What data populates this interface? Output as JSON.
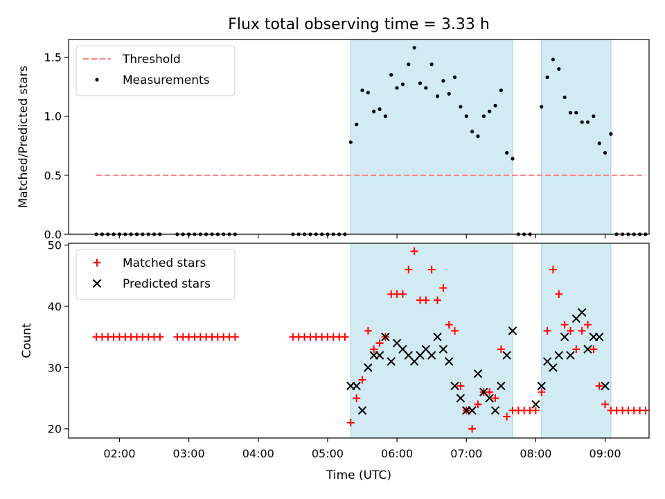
{
  "chart_data": {
    "title": "Flux total observing time = 3.33 h",
    "xlabel": "Time (UTC)",
    "x_ticks": [
      "02:00",
      "03:00",
      "04:00",
      "05:00",
      "06:00",
      "07:00",
      "08:00",
      "09:00"
    ],
    "x_range": [
      "01:16",
      "09:38"
    ],
    "highlight_intervals": [
      [
        "05:20",
        "07:40"
      ],
      [
        "08:05",
        "09:05"
      ]
    ],
    "highlight_color": "#add8e6",
    "panels": [
      {
        "type": "scatter",
        "ylabel": "Matched/Predicted stars",
        "ylim": [
          0,
          1.65
        ],
        "y_ticks": [
          0.0,
          0.5,
          1.0,
          1.5
        ],
        "legend": "top-left",
        "threshold": {
          "name": "Threshold",
          "value": 0.5,
          "x_start": "01:40",
          "x_end": "09:35",
          "color": "#ff7f7f",
          "style": "dashed"
        },
        "series": [
          {
            "name": "Measurements",
            "color": "#000000",
            "marker": "dot",
            "points": [
              [
                "01:40",
                0
              ],
              [
                "01:45",
                0
              ],
              [
                "01:50",
                0
              ],
              [
                "01:55",
                0
              ],
              [
                "02:00",
                0
              ],
              [
                "02:05",
                0
              ],
              [
                "02:10",
                0
              ],
              [
                "02:15",
                0
              ],
              [
                "02:20",
                0
              ],
              [
                "02:25",
                0
              ],
              [
                "02:30",
                0
              ],
              [
                "02:35",
                0
              ],
              [
                "02:50",
                0
              ],
              [
                "02:55",
                0
              ],
              [
                "03:00",
                0
              ],
              [
                "03:05",
                0
              ],
              [
                "03:10",
                0
              ],
              [
                "03:15",
                0
              ],
              [
                "03:20",
                0
              ],
              [
                "03:25",
                0
              ],
              [
                "03:30",
                0
              ],
              [
                "03:35",
                0
              ],
              [
                "03:40",
                0
              ],
              [
                "04:30",
                0
              ],
              [
                "04:35",
                0
              ],
              [
                "04:40",
                0
              ],
              [
                "04:45",
                0
              ],
              [
                "04:50",
                0
              ],
              [
                "04:55",
                0
              ],
              [
                "05:00",
                0
              ],
              [
                "05:05",
                0
              ],
              [
                "05:10",
                0
              ],
              [
                "05:15",
                0
              ],
              [
                "05:20",
                0.78
              ],
              [
                "05:25",
                0.93
              ],
              [
                "05:30",
                1.22
              ],
              [
                "05:35",
                1.2
              ],
              [
                "05:40",
                1.04
              ],
              [
                "05:45",
                1.06
              ],
              [
                "05:50",
                1.0
              ],
              [
                "05:55",
                1.35
              ],
              [
                "06:00",
                1.24
              ],
              [
                "06:05",
                1.27
              ],
              [
                "06:10",
                1.44
              ],
              [
                "06:15",
                1.58
              ],
              [
                "06:20",
                1.28
              ],
              [
                "06:25",
                1.24
              ],
              [
                "06:30",
                1.44
              ],
              [
                "06:35",
                1.17
              ],
              [
                "06:40",
                1.3
              ],
              [
                "06:45",
                1.19
              ],
              [
                "06:50",
                1.33
              ],
              [
                "06:55",
                1.08
              ],
              [
                "07:00",
                1.0
              ],
              [
                "07:05",
                0.87
              ],
              [
                "07:10",
                0.83
              ],
              [
                "07:15",
                1.0
              ],
              [
                "07:20",
                1.04
              ],
              [
                "07:25",
                1.09
              ],
              [
                "07:30",
                1.22
              ],
              [
                "07:35",
                0.69
              ],
              [
                "07:40",
                0.64
              ],
              [
                "07:45",
                0
              ],
              [
                "07:50",
                0
              ],
              [
                "07:55",
                0
              ],
              [
                "08:05",
                1.08
              ],
              [
                "08:10",
                1.33
              ],
              [
                "08:15",
                1.48
              ],
              [
                "08:20",
                1.4
              ],
              [
                "08:25",
                1.16
              ],
              [
                "08:30",
                1.03
              ],
              [
                "08:35",
                1.03
              ],
              [
                "08:40",
                0.95
              ],
              [
                "08:45",
                0.95
              ],
              [
                "08:50",
                1.0
              ],
              [
                "08:55",
                0.77
              ],
              [
                "09:00",
                0.69
              ],
              [
                "09:05",
                0.85
              ],
              [
                "09:10",
                0
              ],
              [
                "09:15",
                0
              ],
              [
                "09:20",
                0
              ],
              [
                "09:25",
                0
              ],
              [
                "09:30",
                0
              ],
              [
                "09:35",
                0
              ]
            ]
          }
        ]
      },
      {
        "type": "scatter",
        "ylabel": "Count",
        "ylim": [
          18.5,
          50.3
        ],
        "y_ticks": [
          20,
          30,
          40,
          50
        ],
        "legend": "top-left",
        "series": [
          {
            "name": "Matched stars",
            "color": "#ff0000",
            "marker": "plus",
            "points": [
              [
                "01:40",
                35
              ],
              [
                "01:45",
                35
              ],
              [
                "01:50",
                35
              ],
              [
                "01:55",
                35
              ],
              [
                "02:00",
                35
              ],
              [
                "02:05",
                35
              ],
              [
                "02:10",
                35
              ],
              [
                "02:15",
                35
              ],
              [
                "02:20",
                35
              ],
              [
                "02:25",
                35
              ],
              [
                "02:30",
                35
              ],
              [
                "02:35",
                35
              ],
              [
                "02:50",
                35
              ],
              [
                "02:55",
                35
              ],
              [
                "03:00",
                35
              ],
              [
                "03:05",
                35
              ],
              [
                "03:10",
                35
              ],
              [
                "03:15",
                35
              ],
              [
                "03:20",
                35
              ],
              [
                "03:25",
                35
              ],
              [
                "03:30",
                35
              ],
              [
                "03:35",
                35
              ],
              [
                "03:40",
                35
              ],
              [
                "04:30",
                35
              ],
              [
                "04:35",
                35
              ],
              [
                "04:40",
                35
              ],
              [
                "04:45",
                35
              ],
              [
                "04:50",
                35
              ],
              [
                "04:55",
                35
              ],
              [
                "05:00",
                35
              ],
              [
                "05:05",
                35
              ],
              [
                "05:10",
                35
              ],
              [
                "05:15",
                35
              ],
              [
                "05:20",
                21
              ],
              [
                "05:25",
                25
              ],
              [
                "05:30",
                28
              ],
              [
                "05:35",
                36
              ],
              [
                "05:40",
                33
              ],
              [
                "05:45",
                34
              ],
              [
                "05:50",
                35
              ],
              [
                "05:55",
                42
              ],
              [
                "06:00",
                42
              ],
              [
                "06:05",
                42
              ],
              [
                "06:10",
                46
              ],
              [
                "06:15",
                49
              ],
              [
                "06:20",
                41
              ],
              [
                "06:25",
                41
              ],
              [
                "06:30",
                46
              ],
              [
                "06:35",
                41
              ],
              [
                "06:40",
                43
              ],
              [
                "06:45",
                37
              ],
              [
                "06:50",
                36
              ],
              [
                "06:55",
                27
              ],
              [
                "07:00",
                23
              ],
              [
                "07:05",
                20
              ],
              [
                "07:10",
                24
              ],
              [
                "07:15",
                26
              ],
              [
                "07:20",
                26
              ],
              [
                "07:25",
                25
              ],
              [
                "07:30",
                33
              ],
              [
                "07:35",
                22
              ],
              [
                "07:40",
                23
              ],
              [
                "07:45",
                23
              ],
              [
                "07:50",
                23
              ],
              [
                "07:55",
                23
              ],
              [
                "08:00",
                23
              ],
              [
                "08:05",
                26
              ],
              [
                "08:10",
                36
              ],
              [
                "08:15",
                46
              ],
              [
                "08:20",
                42
              ],
              [
                "08:25",
                37
              ],
              [
                "08:30",
                36
              ],
              [
                "08:35",
                33
              ],
              [
                "08:40",
                36
              ],
              [
                "08:45",
                37
              ],
              [
                "08:50",
                33
              ],
              [
                "08:55",
                27
              ],
              [
                "09:00",
                24
              ],
              [
                "09:05",
                23
              ],
              [
                "09:10",
                23
              ],
              [
                "09:15",
                23
              ],
              [
                "09:20",
                23
              ],
              [
                "09:25",
                23
              ],
              [
                "09:30",
                23
              ],
              [
                "09:35",
                23
              ]
            ]
          },
          {
            "name": "Predicted stars",
            "color": "#000000",
            "marker": "x",
            "points": [
              [
                "05:20",
                27
              ],
              [
                "05:25",
                27
              ],
              [
                "05:30",
                23
              ],
              [
                "05:35",
                30
              ],
              [
                "05:40",
                32
              ],
              [
                "05:45",
                32
              ],
              [
                "05:50",
                35
              ],
              [
                "05:55",
                31
              ],
              [
                "06:00",
                34
              ],
              [
                "06:05",
                33
              ],
              [
                "06:10",
                32
              ],
              [
                "06:15",
                31
              ],
              [
                "06:20",
                32
              ],
              [
                "06:25",
                33
              ],
              [
                "06:30",
                32
              ],
              [
                "06:35",
                35
              ],
              [
                "06:40",
                33
              ],
              [
                "06:45",
                31
              ],
              [
                "06:50",
                27
              ],
              [
                "06:55",
                25
              ],
              [
                "07:00",
                23
              ],
              [
                "07:05",
                23
              ],
              [
                "07:10",
                29
              ],
              [
                "07:15",
                26
              ],
              [
                "07:20",
                25
              ],
              [
                "07:25",
                23
              ],
              [
                "07:30",
                27
              ],
              [
                "07:35",
                32
              ],
              [
                "07:40",
                36
              ],
              [
                "08:00",
                24
              ],
              [
                "08:05",
                27
              ],
              [
                "08:10",
                31
              ],
              [
                "08:15",
                30
              ],
              [
                "08:20",
                32
              ],
              [
                "08:25",
                35
              ],
              [
                "08:30",
                32
              ],
              [
                "08:35",
                38
              ],
              [
                "08:40",
                39
              ],
              [
                "08:45",
                33
              ],
              [
                "08:50",
                35
              ],
              [
                "08:55",
                35
              ],
              [
                "09:00",
                27
              ]
            ]
          }
        ]
      }
    ]
  }
}
